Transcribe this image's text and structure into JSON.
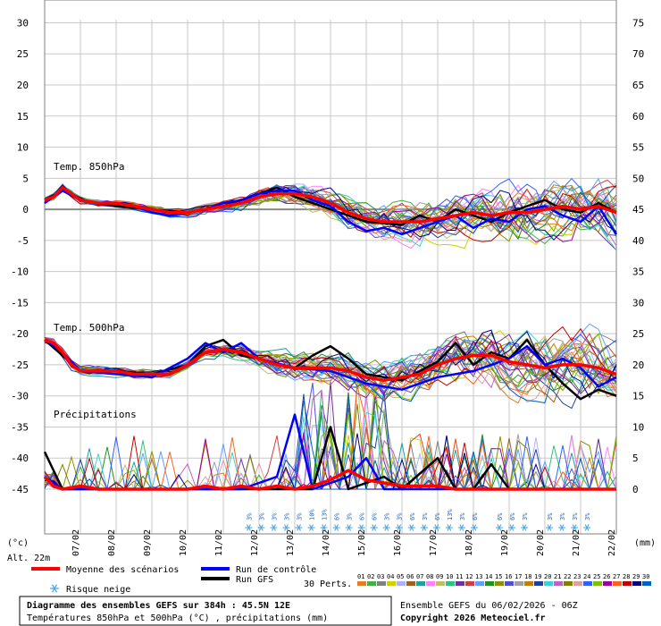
{
  "chart_data": {
    "type": "line",
    "panel_labels": {
      "t850": "Temp. 850hPa",
      "t500": "Temp. 500hPa",
      "precip": "Précipitations"
    },
    "left_axis_ticks": [
      30,
      25,
      20,
      15,
      10,
      5,
      0,
      -5,
      -10,
      -15,
      -20,
      -25,
      -30,
      -35,
      -40,
      -45
    ],
    "right_axis_ticks": [
      75,
      70,
      65,
      60,
      55,
      50,
      45,
      40,
      35,
      30,
      25,
      20,
      15,
      10,
      5,
      0
    ],
    "left_unit": "(°c)",
    "right_unit": "(mm)",
    "altitude": "Alt. 22m",
    "x_dates": [
      "07/02",
      "08/02",
      "09/02",
      "10/02",
      "11/02",
      "12/02",
      "13/02",
      "14/02",
      "15/02",
      "16/02",
      "17/02",
      "18/02",
      "19/02",
      "20/02",
      "21/02",
      "22/02"
    ],
    "x_range_hours": [
      0,
      384
    ],
    "series": [
      {
        "name": "Moyenne des scénarios",
        "color": "#ff0000",
        "t850": [
          [
            0,
            1.5
          ],
          [
            6,
            2
          ],
          [
            12,
            3.5
          ],
          [
            18,
            2.5
          ],
          [
            24,
            1.5
          ],
          [
            36,
            1
          ],
          [
            48,
            1
          ],
          [
            60,
            0.5
          ],
          [
            72,
            0
          ],
          [
            84,
            -0.5
          ],
          [
            96,
            -0.5
          ],
          [
            108,
            0
          ],
          [
            120,
            0.5
          ],
          [
            132,
            1
          ],
          [
            144,
            2
          ],
          [
            156,
            2.5
          ],
          [
            168,
            2.5
          ],
          [
            180,
            2
          ],
          [
            192,
            1
          ],
          [
            204,
            -0.5
          ],
          [
            216,
            -1.5
          ],
          [
            228,
            -2
          ],
          [
            240,
            -2
          ],
          [
            252,
            -2
          ],
          [
            264,
            -1.5
          ],
          [
            276,
            -1
          ],
          [
            288,
            -0.5
          ],
          [
            300,
            -1
          ],
          [
            312,
            -0.5
          ],
          [
            324,
            -0.5
          ],
          [
            336,
            0
          ],
          [
            348,
            0.5
          ],
          [
            360,
            0
          ],
          [
            372,
            0.5
          ],
          [
            384,
            -0.5
          ]
        ],
        "t500": [
          [
            0,
            -21
          ],
          [
            6,
            -21.5
          ],
          [
            12,
            -23
          ],
          [
            18,
            -25
          ],
          [
            24,
            -26
          ],
          [
            36,
            -26
          ],
          [
            48,
            -26
          ],
          [
            60,
            -26.5
          ],
          [
            72,
            -26.5
          ],
          [
            84,
            -26.5
          ],
          [
            96,
            -25
          ],
          [
            108,
            -23
          ],
          [
            120,
            -22.5
          ],
          [
            132,
            -23
          ],
          [
            144,
            -24
          ],
          [
            156,
            -25
          ],
          [
            168,
            -25.5
          ],
          [
            180,
            -25.5
          ],
          [
            192,
            -25.5
          ],
          [
            204,
            -26
          ],
          [
            216,
            -27
          ],
          [
            228,
            -27.5
          ],
          [
            240,
            -27
          ],
          [
            252,
            -26.5
          ],
          [
            264,
            -25
          ],
          [
            276,
            -24
          ],
          [
            288,
            -23.5
          ],
          [
            300,
            -23.5
          ],
          [
            312,
            -24.5
          ],
          [
            324,
            -25
          ],
          [
            336,
            -25.5
          ],
          [
            348,
            -25
          ],
          [
            360,
            -25
          ],
          [
            372,
            -25.5
          ],
          [
            384,
            -26.5
          ]
        ],
        "precip_mm": [
          [
            0,
            2
          ],
          [
            6,
            0.5
          ],
          [
            12,
            0
          ],
          [
            24,
            0.5
          ],
          [
            36,
            0
          ],
          [
            48,
            0
          ],
          [
            60,
            0
          ],
          [
            72,
            0
          ],
          [
            84,
            0
          ],
          [
            96,
            0
          ],
          [
            108,
            0.5
          ],
          [
            120,
            0
          ],
          [
            132,
            0.5
          ],
          [
            144,
            0
          ],
          [
            156,
            0.5
          ],
          [
            168,
            0
          ],
          [
            180,
            0.5
          ],
          [
            192,
            1.5
          ],
          [
            204,
            3
          ],
          [
            216,
            1.5
          ],
          [
            228,
            1
          ],
          [
            240,
            0.5
          ],
          [
            252,
            0.5
          ],
          [
            264,
            0.5
          ],
          [
            276,
            0
          ],
          [
            288,
            0
          ],
          [
            300,
            0
          ],
          [
            312,
            0
          ],
          [
            324,
            0
          ],
          [
            336,
            0
          ],
          [
            348,
            0
          ],
          [
            360,
            0
          ],
          [
            372,
            0
          ],
          [
            384,
            0
          ]
        ]
      },
      {
        "name": "Run de contrôle",
        "color": "#0000ff",
        "t850": [
          [
            0,
            1
          ],
          [
            12,
            3
          ],
          [
            24,
            1.5
          ],
          [
            36,
            1
          ],
          [
            48,
            1
          ],
          [
            60,
            0.5
          ],
          [
            72,
            -0.5
          ],
          [
            84,
            -1
          ],
          [
            96,
            -0.5
          ],
          [
            108,
            0
          ],
          [
            120,
            1
          ],
          [
            132,
            1.5
          ],
          [
            144,
            2.5
          ],
          [
            156,
            3
          ],
          [
            168,
            3
          ],
          [
            180,
            1.5
          ],
          [
            192,
            0.5
          ],
          [
            204,
            -2
          ],
          [
            216,
            -3.5
          ],
          [
            228,
            -3
          ],
          [
            240,
            -4
          ],
          [
            252,
            -3
          ],
          [
            264,
            -2
          ],
          [
            276,
            -1
          ],
          [
            288,
            -3
          ],
          [
            300,
            -1.5
          ],
          [
            312,
            -2
          ],
          [
            324,
            0
          ],
          [
            336,
            0.5
          ],
          [
            348,
            -1
          ],
          [
            360,
            -2
          ],
          [
            372,
            0.5
          ],
          [
            384,
            -4
          ]
        ],
        "t500": [
          [
            0,
            -21
          ],
          [
            12,
            -23
          ],
          [
            24,
            -26
          ],
          [
            48,
            -26.5
          ],
          [
            72,
            -27
          ],
          [
            96,
            -24
          ],
          [
            108,
            -21.5
          ],
          [
            120,
            -23
          ],
          [
            132,
            -21.5
          ],
          [
            144,
            -24
          ],
          [
            168,
            -25.5
          ],
          [
            192,
            -26
          ],
          [
            216,
            -28
          ],
          [
            240,
            -29
          ],
          [
            264,
            -27
          ],
          [
            288,
            -26
          ],
          [
            312,
            -24
          ],
          [
            324,
            -22
          ],
          [
            336,
            -25
          ],
          [
            348,
            -24
          ],
          [
            360,
            -25.5
          ],
          [
            372,
            -28.5
          ],
          [
            384,
            -27
          ]
        ],
        "precip_mm": [
          [
            0,
            2
          ],
          [
            12,
            0
          ],
          [
            48,
            0
          ],
          [
            96,
            0
          ],
          [
            132,
            0
          ],
          [
            156,
            2
          ],
          [
            168,
            12
          ],
          [
            180,
            0
          ],
          [
            204,
            2
          ],
          [
            216,
            5
          ],
          [
            228,
            0
          ],
          [
            288,
            0
          ],
          [
            384,
            0
          ]
        ]
      },
      {
        "name": "Run GFS",
        "color": "#000000",
        "t850": [
          [
            0,
            1.5
          ],
          [
            12,
            3
          ],
          [
            24,
            1.5
          ],
          [
            48,
            0.5
          ],
          [
            72,
            0
          ],
          [
            96,
            -0.5
          ],
          [
            120,
            0.5
          ],
          [
            132,
            1.5
          ],
          [
            144,
            2.5
          ],
          [
            156,
            3.5
          ],
          [
            168,
            2
          ],
          [
            180,
            1
          ],
          [
            192,
            0
          ],
          [
            204,
            -1
          ],
          [
            216,
            -2
          ],
          [
            240,
            -2.5
          ],
          [
            252,
            -1
          ],
          [
            264,
            -2
          ],
          [
            276,
            0
          ],
          [
            288,
            -1
          ],
          [
            300,
            -2
          ],
          [
            312,
            -0.5
          ],
          [
            324,
            0.5
          ],
          [
            336,
            1.5
          ],
          [
            348,
            0
          ],
          [
            360,
            -0.5
          ],
          [
            372,
            1
          ],
          [
            384,
            -0.5
          ]
        ],
        "t500": [
          [
            0,
            -21
          ],
          [
            12,
            -23.5
          ],
          [
            24,
            -26
          ],
          [
            48,
            -26
          ],
          [
            72,
            -26.5
          ],
          [
            96,
            -25
          ],
          [
            108,
            -22
          ],
          [
            120,
            -21
          ],
          [
            132,
            -23.5
          ],
          [
            144,
            -24
          ],
          [
            168,
            -25.5
          ],
          [
            180,
            -23.5
          ],
          [
            192,
            -22
          ],
          [
            204,
            -24
          ],
          [
            216,
            -26.5
          ],
          [
            240,
            -27.5
          ],
          [
            264,
            -24.5
          ],
          [
            276,
            -21.5
          ],
          [
            288,
            -25
          ],
          [
            300,
            -23
          ],
          [
            312,
            -24
          ],
          [
            324,
            -21
          ],
          [
            336,
            -25
          ],
          [
            348,
            -28
          ],
          [
            360,
            -30.5
          ],
          [
            372,
            -29
          ],
          [
            384,
            -30
          ]
        ],
        "precip_mm": [
          [
            0,
            6
          ],
          [
            12,
            0
          ],
          [
            48,
            0
          ],
          [
            96,
            0
          ],
          [
            180,
            0
          ],
          [
            192,
            10
          ],
          [
            204,
            0
          ],
          [
            228,
            2
          ],
          [
            240,
            0
          ],
          [
            264,
            5
          ],
          [
            276,
            0
          ],
          [
            288,
            0
          ],
          [
            300,
            4
          ],
          [
            312,
            0
          ],
          [
            384,
            0
          ]
        ]
      }
    ],
    "perturbations_count": 30,
    "snow_risk_percent": [
      {
        "hour": 177,
        "label": "3%"
      },
      {
        "hour": 186,
        "label": "3%"
      },
      {
        "hour": 195,
        "label": "3%"
      },
      {
        "hour": 204,
        "label": "3%"
      },
      {
        "hour": 213,
        "label": "3%"
      },
      {
        "hour": 222,
        "label": "10%"
      },
      {
        "hour": 231,
        "label": "13%"
      },
      {
        "hour": 240,
        "label": "6%"
      },
      {
        "hour": 249,
        "label": "3%"
      },
      {
        "hour": 258,
        "label": "6%"
      },
      {
        "hour": 267,
        "label": "6%"
      },
      {
        "hour": 276,
        "label": "3%"
      },
      {
        "hour": 285,
        "label": "3%"
      },
      {
        "hour": 294,
        "label": "6%"
      },
      {
        "hour": 303,
        "label": "3%"
      },
      {
        "hour": 312,
        "label": "6%"
      },
      {
        "hour": 321,
        "label": "13%"
      },
      {
        "hour": 330,
        "label": "3%"
      },
      {
        "hour": 339,
        "label": "6%"
      },
      {
        "hour": 357,
        "label": "6%"
      },
      {
        "hour": 366,
        "label": "6%"
      },
      {
        "hour": 375,
        "label": "3%"
      },
      {
        "hour": 393,
        "label": "3%"
      },
      {
        "hour": 402,
        "label": "3%"
      },
      {
        "hour": 411,
        "label": "3%"
      },
      {
        "hour": 420,
        "label": "3%"
      }
    ]
  },
  "legend": {
    "mean": "Moyenne des scénarios",
    "control": "Run de contrôle",
    "gfs": "Run GFS",
    "snow": "Risque neige",
    "perts": "30 Perts."
  },
  "perturbations": {
    "labels": [
      "01",
      "02",
      "03",
      "04",
      "05",
      "06",
      "07",
      "08",
      "09",
      "10",
      "11",
      "12",
      "13",
      "14",
      "15",
      "16",
      "17",
      "18",
      "19",
      "20",
      "21",
      "22",
      "23",
      "24",
      "25",
      "26",
      "27",
      "28",
      "29",
      "30"
    ],
    "colors": [
      "#e08020",
      "#40b040",
      "#808080",
      "#d0d000",
      "#b0b0ff",
      "#a06020",
      "#20a0a0",
      "#ff80ff",
      "#c0c060",
      "#30c080",
      "#7030a0",
      "#d04040",
      "#60a0ff",
      "#209020",
      "#909000",
      "#5050d0",
      "#a0a0a0",
      "#c08000",
      "#2040a0",
      "#40d0d0",
      "#c060c0",
      "#808000",
      "#e0a0a0",
      "#3060ff",
      "#80c000",
      "#a000a0",
      "#ff6020",
      "#c00000",
      "#000080",
      "#0060c0"
    ]
  },
  "footer": {
    "title": "Diagramme des ensembles GEFS sur 384h : 45.5N 12E",
    "subtitle": "Températures 850hPa et 500hPa (°C) , précipitations (mm)",
    "run_info": "Ensemble GEFS du 06/02/2026 - 06Z",
    "copyright": "Copyright 2026 Meteociel.fr"
  }
}
